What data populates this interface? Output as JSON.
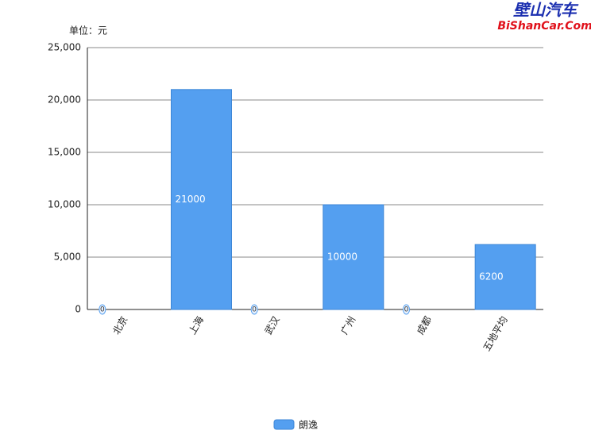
{
  "chart_data": {
    "type": "bar",
    "watermark": "壁山汽车",
    "watermark_sub": "BiShanCar.Com",
    "unit_label": "单位：元",
    "categories": [
      "北京",
      "上海",
      "武汉",
      "广州",
      "成都",
      "五地平均"
    ],
    "series": [
      {
        "name": "朗逸",
        "color": "#549ff0",
        "values": [
          0,
          21000,
          0,
          10000,
          0,
          6200
        ]
      }
    ],
    "ylim": [
      0,
      25000
    ],
    "yticks": [
      0,
      {
        "value": 5000,
        "label": "5,000"
      },
      {
        "value": 10000,
        "label": "10,000"
      },
      {
        "value": 15000,
        "label": "15,000"
      },
      {
        "value": 20000,
        "label": "20,000"
      },
      {
        "value": 25000,
        "label": "25,000"
      }
    ],
    "grid": true
  }
}
